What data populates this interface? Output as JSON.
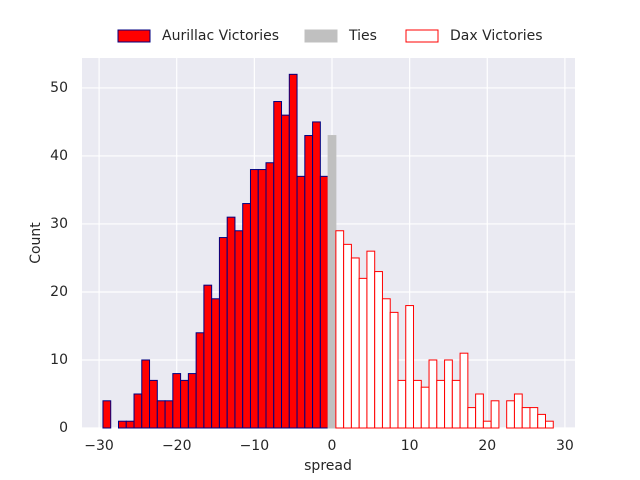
{
  "chart_data": {
    "type": "histogram",
    "xlabel": "spread",
    "ylabel": "Count",
    "bins": [
      -29.5,
      -28.5,
      -27.5,
      -26.5,
      -25.5,
      -24.5,
      -23.5,
      -22.5,
      -21.5,
      -20.5,
      -19.5,
      -18.5,
      -17.5,
      -16.5,
      -15.5,
      -14.5,
      -13.5,
      -12.5,
      -11.5,
      -10.5,
      -9.5,
      -8.5,
      -7.5,
      -6.5,
      -5.5,
      -4.5,
      -3.5,
      -2.5,
      -1.5,
      -0.5,
      0.5,
      1.5,
      2.5,
      3.5,
      4.5,
      5.5,
      6.5,
      7.5,
      8.5,
      9.5,
      10.5,
      11.5,
      12.5,
      13.5,
      14.5,
      15.5,
      16.5,
      17.5,
      18.5,
      19.5,
      20.5,
      21.5,
      22.5,
      23.5,
      24.5,
      25.5,
      26.5,
      27.5,
      28.5
    ],
    "series": [
      {
        "name": "Aurillac Victories",
        "color": "#ff0000",
        "edgecolor": "#000080",
        "values": [
          4,
          0,
          1,
          1,
          5,
          10,
          7,
          4,
          4,
          8,
          7,
          8,
          14,
          21,
          19,
          28,
          31,
          29,
          33,
          38,
          38,
          39,
          48,
          46,
          52,
          37,
          43,
          45,
          37,
          0,
          0,
          0,
          0,
          0,
          0,
          0,
          0,
          0,
          0,
          0,
          0,
          0,
          0,
          0,
          0,
          0,
          0,
          0,
          0,
          0,
          0,
          0,
          0,
          0,
          0,
          0,
          0,
          0
        ]
      },
      {
        "name": "Ties",
        "color": "#c0c0c0",
        "edgecolor": "#c0c0c0",
        "values": [
          0,
          0,
          0,
          0,
          0,
          0,
          0,
          0,
          0,
          0,
          0,
          0,
          0,
          0,
          0,
          0,
          0,
          0,
          0,
          0,
          0,
          0,
          0,
          0,
          0,
          0,
          0,
          0,
          0,
          43,
          0,
          0,
          0,
          0,
          0,
          0,
          0,
          0,
          0,
          0,
          0,
          0,
          0,
          0,
          0,
          0,
          0,
          0,
          0,
          0,
          0,
          0,
          0,
          0,
          0,
          0,
          0,
          0
        ]
      },
      {
        "name": "Dax Victories",
        "color": "#ffffff",
        "edgecolor": "#ff0000",
        "values": [
          0,
          0,
          0,
          0,
          0,
          0,
          0,
          0,
          0,
          0,
          0,
          0,
          0,
          0,
          0,
          0,
          0,
          0,
          0,
          0,
          0,
          0,
          0,
          0,
          0,
          0,
          0,
          0,
          0,
          0,
          29,
          27,
          25,
          22,
          26,
          23,
          19,
          17,
          7,
          18,
          7,
          6,
          10,
          7,
          10,
          7,
          11,
          3,
          5,
          1,
          4,
          0,
          4,
          5,
          3,
          3,
          2,
          1
        ]
      }
    ],
    "xlim": [
      -32.2,
      31.3
    ],
    "ylim": [
      0,
      54.4
    ],
    "xticks": [
      {
        "value": -30,
        "label": "−30"
      },
      {
        "value": -20,
        "label": "−20"
      },
      {
        "value": -10,
        "label": "−10"
      },
      0,
      10,
      20,
      30
    ],
    "yticks": [
      0,
      10,
      20,
      30,
      40,
      50
    ],
    "grid": true,
    "legend": "top"
  }
}
